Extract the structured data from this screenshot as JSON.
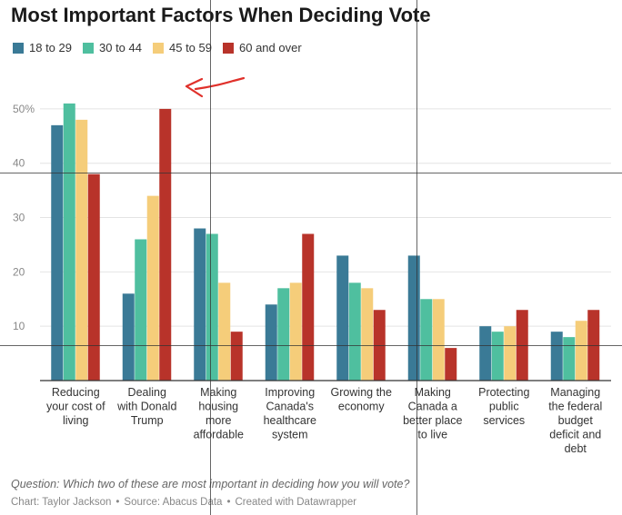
{
  "colors": {
    "series": [
      "#3a7a96",
      "#4fbf9f",
      "#f5cd7a",
      "#b8332a"
    ],
    "grid": "#e4e4e4",
    "axis": "#333333",
    "annotation_arrow": "#e0302a"
  },
  "chart_data": {
    "type": "bar",
    "title": "Most Important Factors When Deciding Vote",
    "categories": [
      [
        "Reducing",
        "your cost of",
        "living"
      ],
      [
        "Dealing",
        "with Donald",
        "Trump"
      ],
      [
        "Making",
        "housing",
        "more",
        "affordable"
      ],
      [
        "Improving",
        "Canada's",
        "healthcare",
        "system"
      ],
      [
        "Growing the",
        "economy"
      ],
      [
        "Making",
        "Canada a",
        "better place",
        "to live"
      ],
      [
        "Protecting",
        "public",
        "services"
      ],
      [
        "Managing",
        "the federal",
        "budget",
        "deficit and",
        "debt"
      ]
    ],
    "series": [
      {
        "name": "18 to 29",
        "values": [
          47,
          16,
          28,
          14,
          23,
          23,
          10,
          9
        ]
      },
      {
        "name": "30 to 44",
        "values": [
          51,
          26,
          27,
          17,
          18,
          15,
          9,
          8
        ]
      },
      {
        "name": "45 to 59",
        "values": [
          48,
          34,
          18,
          18,
          17,
          15,
          10,
          11
        ]
      },
      {
        "name": "60 and over",
        "values": [
          38,
          50,
          9,
          27,
          13,
          6,
          13,
          13
        ]
      }
    ],
    "yticks": [
      10,
      20,
      30,
      40,
      50
    ],
    "ytick_labels": [
      "10",
      "20",
      "30",
      "40",
      "50%"
    ],
    "ylim": [
      0,
      55
    ],
    "xlabel": "",
    "ylabel": "",
    "legend_position": "top-left",
    "grid": true,
    "annotations": [
      {
        "type": "hand-drawn-arrow",
        "target_category": 1,
        "target_series": "60 and over"
      }
    ]
  },
  "footer": {
    "question": "Question: Which two of these are most important in deciding how you will vote?",
    "credit_chart": "Chart: Taylor Jackson",
    "credit_source": "Source: Abacus Data",
    "credit_tool": "Created with Datawrapper",
    "separator": "•"
  }
}
